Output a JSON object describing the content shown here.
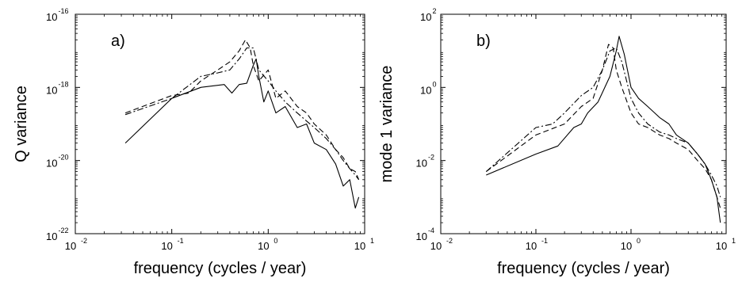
{
  "chart_data": [
    {
      "type": "line",
      "panel_label": "a)",
      "xlabel": "frequency (cycles / year)",
      "ylabel": "Q variance",
      "xscale": "log",
      "yscale": "log",
      "xlim": [
        0.01,
        10
      ],
      "ylim": [
        1e-22,
        1e-16
      ],
      "xticks": [
        {
          "value": 0.01,
          "base": "10",
          "exp": "-2"
        },
        {
          "value": 0.1,
          "base": "10",
          "exp": "-1"
        },
        {
          "value": 1,
          "base": "10",
          "exp": "0"
        },
        {
          "value": 10,
          "base": "10",
          "exp": "1"
        }
      ],
      "yticks": [
        {
          "value": 1e-22,
          "base": "10",
          "exp": "-22"
        },
        {
          "value": 1e-20,
          "base": "10",
          "exp": "-20"
        },
        {
          "value": 1e-18,
          "base": "10",
          "exp": "-18"
        },
        {
          "value": 1e-16,
          "base": "10",
          "exp": "-16"
        }
      ],
      "grid": false,
      "series": [
        {
          "style": "solid",
          "x": [
            0.033,
            0.1,
            0.2,
            0.35,
            0.42,
            0.5,
            0.6,
            0.7,
            0.75,
            0.8,
            0.9,
            1.0,
            1.2,
            1.5,
            2.0,
            2.5,
            3.0,
            4.0,
            5.0,
            6.0,
            7.0,
            8.0,
            8.7
          ],
          "y": [
            3e-20,
            5e-19,
            1e-18,
            1.2e-18,
            7e-19,
            1.2e-18,
            1.3e-18,
            4e-18,
            6e-18,
            2e-18,
            4e-19,
            8e-19,
            2e-19,
            3e-19,
            8e-20,
            1e-19,
            3e-20,
            2e-20,
            8e-21,
            2e-21,
            3e-21,
            5e-22,
            1e-21
          ]
        },
        {
          "style": "dashed",
          "x": [
            0.033,
            0.1,
            0.15,
            0.2,
            0.3,
            0.4,
            0.5,
            0.58,
            0.65,
            0.7,
            0.8,
            1.0,
            1.2,
            1.5,
            2.0,
            2.5,
            3.0,
            4.0,
            5.0,
            6.0,
            7.0,
            8.0,
            8.7
          ],
          "y": [
            2e-19,
            6e-19,
            7e-19,
            1.5e-18,
            3e-18,
            5e-18,
            1e-17,
            2e-17,
            1.2e-17,
            4e-18,
            1.5e-18,
            3e-18,
            5e-19,
            8e-19,
            3e-19,
            2e-19,
            1e-19,
            5e-20,
            2e-20,
            1.2e-20,
            6e-21,
            5e-21,
            3e-21
          ]
        },
        {
          "style": "dashdot",
          "x": [
            0.033,
            0.1,
            0.2,
            0.3,
            0.4,
            0.5,
            0.6,
            0.7,
            0.8,
            1.0,
            1.2,
            1.5,
            2.0,
            2.5,
            3.0,
            4.0,
            5.0,
            6.0,
            7.0,
            8.0,
            8.7
          ],
          "y": [
            1.8e-19,
            5e-19,
            2e-18,
            2.5e-18,
            3e-18,
            6e-18,
            1.2e-17,
            1.2e-17,
            3e-18,
            1.5e-18,
            8e-19,
            4e-19,
            2e-19,
            1.2e-19,
            8e-20,
            4e-20,
            2e-20,
            1e-20,
            6e-21,
            4e-21,
            3e-21
          ]
        }
      ]
    },
    {
      "type": "line",
      "panel_label": "b)",
      "xlabel": "frequency (cycles / year)",
      "ylabel": "mode 1 variance",
      "xscale": "log",
      "yscale": "log",
      "xlim": [
        0.01,
        10
      ],
      "ylim": [
        0.0001,
        100
      ],
      "xticks": [
        {
          "value": 0.01,
          "base": "10",
          "exp": "-2"
        },
        {
          "value": 0.1,
          "base": "10",
          "exp": "-1"
        },
        {
          "value": 1,
          "base": "10",
          "exp": "0"
        },
        {
          "value": 10,
          "base": "10",
          "exp": "1"
        }
      ],
      "yticks": [
        {
          "value": 0.0001,
          "base": "10",
          "exp": "-4"
        },
        {
          "value": 0.01,
          "base": "10",
          "exp": "-2"
        },
        {
          "value": 1,
          "base": "10",
          "exp": "0"
        },
        {
          "value": 100,
          "base": "10",
          "exp": "2"
        }
      ],
      "grid": false,
      "series": [
        {
          "style": "solid",
          "x": [
            0.03,
            0.1,
            0.17,
            0.25,
            0.3,
            0.35,
            0.45,
            0.6,
            0.7,
            0.75,
            0.85,
            1.0,
            1.2,
            1.5,
            2.0,
            2.5,
            3.0,
            4.0,
            5.0,
            6.0,
            7.0,
            8.0,
            8.7
          ],
          "y": [
            0.004,
            0.015,
            0.025,
            0.08,
            0.1,
            0.2,
            0.4,
            2.0,
            10.0,
            25.0,
            8.0,
            1.0,
            0.5,
            0.3,
            0.15,
            0.1,
            0.05,
            0.03,
            0.015,
            0.008,
            0.003,
            0.001,
            0.0002
          ]
        },
        {
          "style": "dashed",
          "x": [
            0.03,
            0.1,
            0.2,
            0.3,
            0.4,
            0.5,
            0.58,
            0.65,
            0.7,
            0.8,
            1.0,
            1.2,
            1.5,
            2.0,
            2.5,
            3.0,
            4.0,
            5.0,
            6.0,
            7.0,
            8.0,
            8.7
          ],
          "y": [
            0.005,
            0.05,
            0.1,
            0.3,
            0.5,
            3.0,
            15.0,
            12.0,
            3.0,
            1.0,
            0.2,
            0.1,
            0.08,
            0.05,
            0.04,
            0.03,
            0.02,
            0.01,
            0.006,
            0.003,
            0.001,
            0.0005
          ]
        },
        {
          "style": "dashdot",
          "x": [
            0.03,
            0.1,
            0.15,
            0.2,
            0.3,
            0.4,
            0.5,
            0.6,
            0.7,
            0.8,
            1.0,
            1.2,
            1.5,
            2.0,
            2.5,
            3.0,
            4.0,
            5.0,
            6.0,
            7.0,
            8.0,
            8.7
          ],
          "y": [
            0.005,
            0.08,
            0.1,
            0.2,
            0.6,
            1.0,
            3.0,
            10.0,
            12.0,
            5.0,
            0.5,
            0.2,
            0.1,
            0.06,
            0.05,
            0.04,
            0.03,
            0.015,
            0.008,
            0.004,
            0.002,
            0.001
          ]
        }
      ]
    }
  ]
}
